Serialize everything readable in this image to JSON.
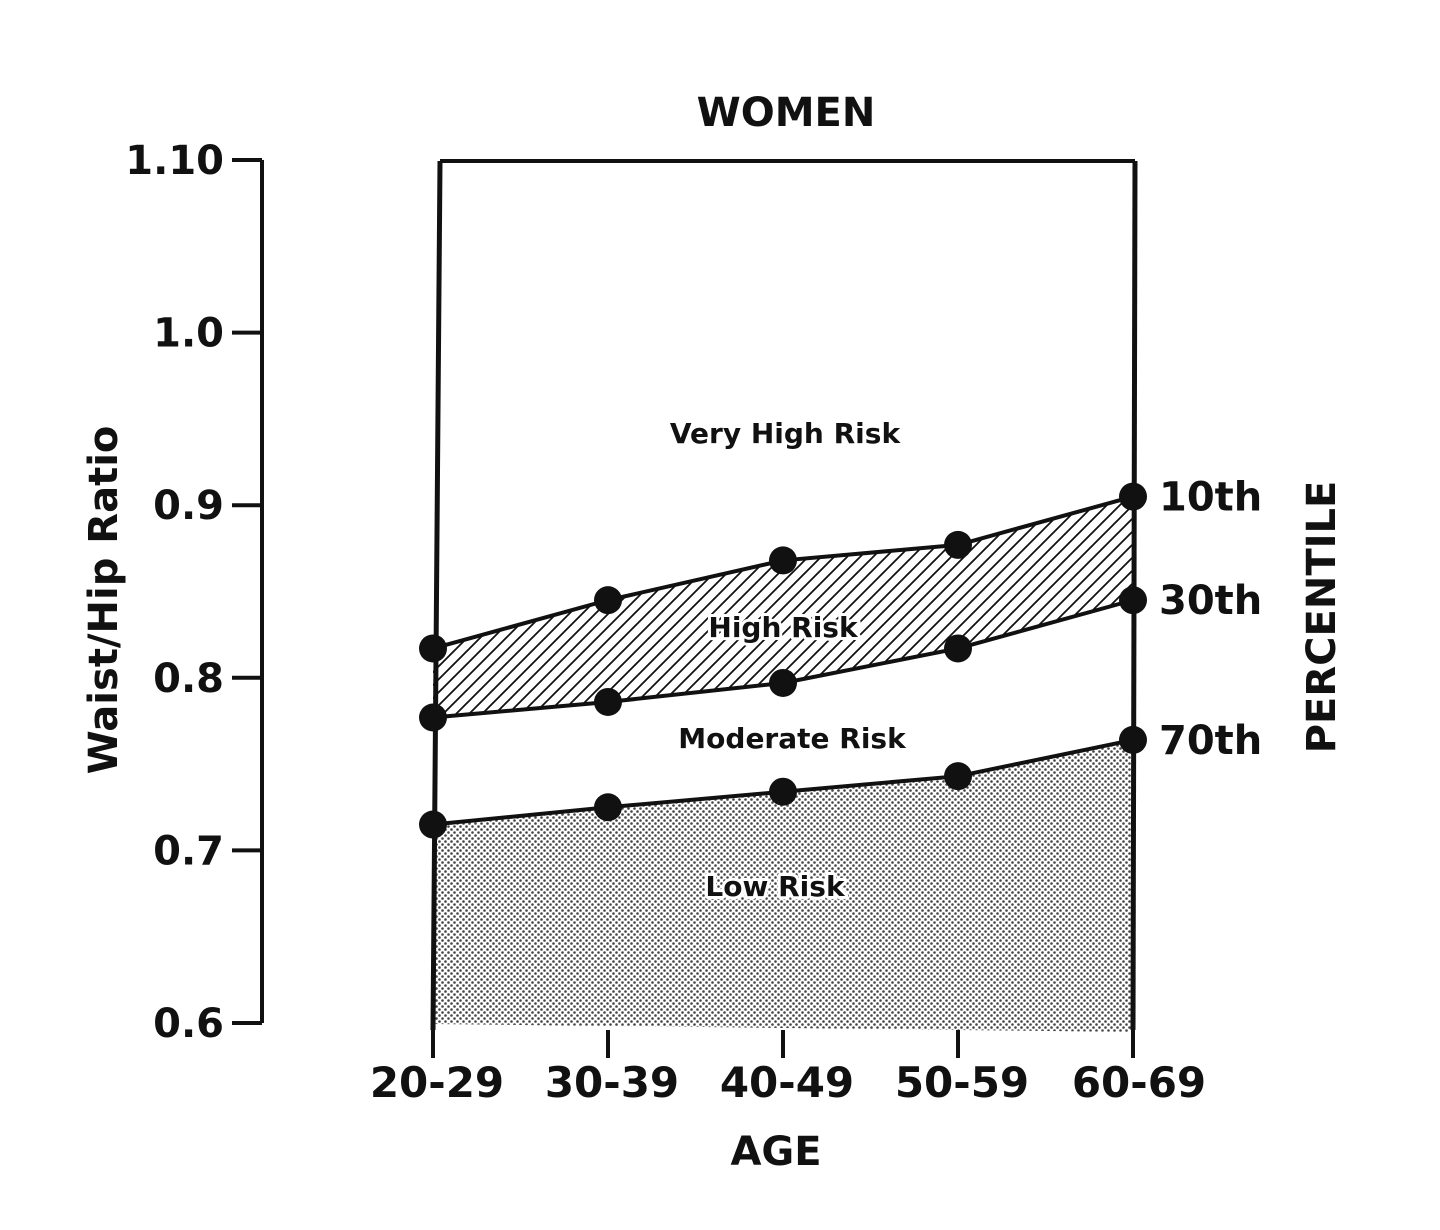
{
  "chart_data": {
    "type": "area",
    "title": "WOMEN",
    "xlabel": "AGE",
    "ylabel": "Waist/Hip Ratio",
    "right_label": "PERCENTILE",
    "categories": [
      "20-29",
      "30-39",
      "40-49",
      "50-59",
      "60-69"
    ],
    "y_ticks": [
      "1.10",
      "1.0",
      "0.9",
      "0.8",
      "0.7",
      "0.6"
    ],
    "y_tick_values": [
      1.1,
      1.0,
      0.9,
      0.8,
      0.7,
      0.6
    ],
    "ylim": [
      0.6,
      1.1
    ],
    "series": [
      {
        "name": "10th",
        "values": [
          0.817,
          0.845,
          0.868,
          0.877,
          0.905
        ]
      },
      {
        "name": "30th",
        "values": [
          0.777,
          0.786,
          0.797,
          0.817,
          0.845
        ]
      },
      {
        "name": "70th",
        "values": [
          0.715,
          0.725,
          0.734,
          0.743,
          0.764
        ]
      }
    ],
    "zones": [
      {
        "label": "Very High Risk",
        "fill": "none"
      },
      {
        "label": "High Risk",
        "fill": "diagonal-hatch"
      },
      {
        "label": "Moderate Risk",
        "fill": "none"
      },
      {
        "label": "Low Risk",
        "fill": "dotted-stipple"
      }
    ],
    "colors": {
      "ink": "#111111",
      "background": "#ffffff",
      "stipple": "#555555"
    },
    "grid": false
  }
}
